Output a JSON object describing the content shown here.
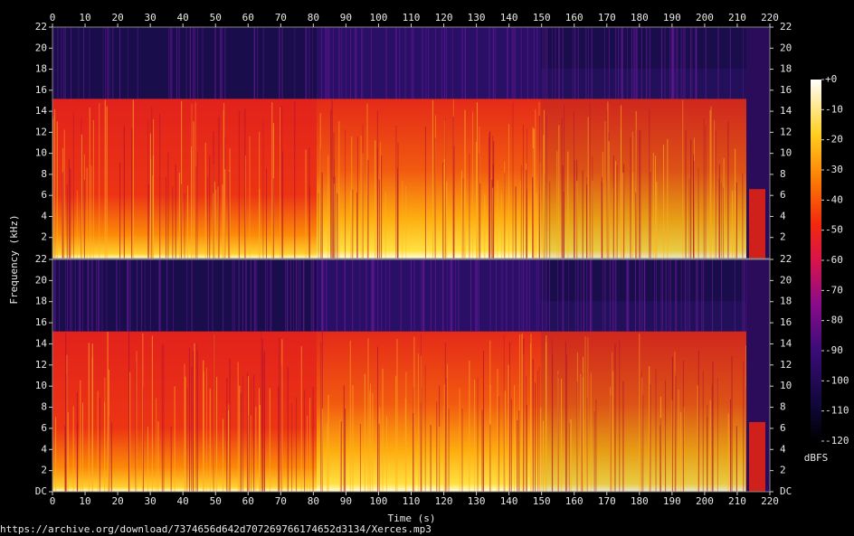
{
  "chart_data": {
    "type": "spectrogram",
    "xlabel": "Time (s)",
    "ylabel": "Frequency (kHz)",
    "xlim": [
      0,
      220
    ],
    "xticks": [
      0,
      10,
      20,
      30,
      40,
      50,
      60,
      70,
      80,
      90,
      100,
      110,
      120,
      130,
      140,
      150,
      160,
      170,
      180,
      190,
      200,
      210,
      220
    ],
    "ylim": [
      0,
      22
    ],
    "yticks": [
      {
        "value": 0,
        "label": "DC"
      },
      2,
      4,
      6,
      8,
      10,
      12,
      14,
      16,
      18,
      20,
      22
    ],
    "colorbar": {
      "label": "dBFS",
      "lim": [
        -120,
        0
      ],
      "ticks": [
        {
          "value": 0,
          "label": "+0"
        },
        -10,
        -20,
        -30,
        -40,
        -50,
        -60,
        -70,
        -80,
        -90,
        -100,
        -110,
        -120
      ]
    }
  },
  "footer": "https://archive.org/download/7374656d642d707269766174652d3134/Xerces.mp3"
}
